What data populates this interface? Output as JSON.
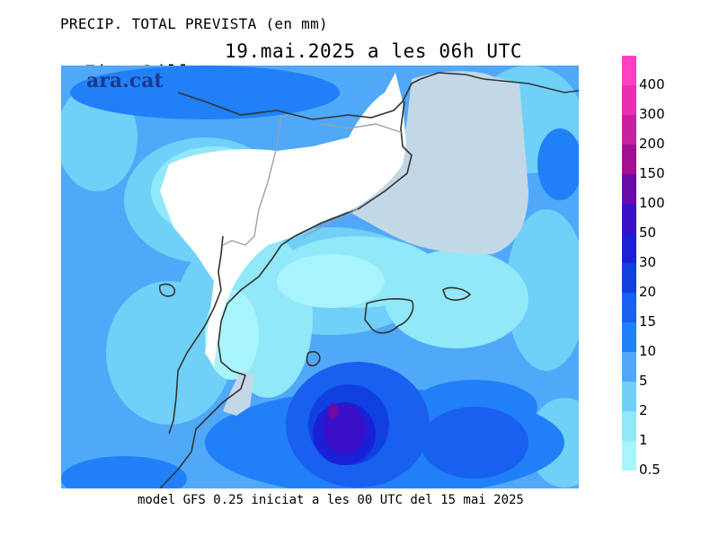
{
  "title_line1": "PRECIP. TOTAL PREVISTA (en mm)",
  "title_line2_left": "Fins Dilluns",
  "title_line2_date": "19.mai.2025 a les 06h UTC",
  "logo": "ara.cat",
  "footer": "model GFS 0.25 iniciat a les 00 UTC del 15 mai 2025",
  "legend": {
    "unit": "mm",
    "levels": [
      {
        "label": "400",
        "color": "#ff40c0"
      },
      {
        "label": "300",
        "color": "#e830b0"
      },
      {
        "label": "200",
        "color": "#c820a0"
      },
      {
        "label": "150",
        "color": "#a01090"
      },
      {
        "label": "100",
        "color": "#6a0aa8"
      },
      {
        "label": "50",
        "color": "#3a10c8"
      },
      {
        "label": "30",
        "color": "#1a20d8"
      },
      {
        "label": "20",
        "color": "#1040e0"
      },
      {
        "label": "15",
        "color": "#1860f0"
      },
      {
        "label": "10",
        "color": "#2080f8"
      },
      {
        "label": "5",
        "color": "#50a8f8"
      },
      {
        "label": "2",
        "color": "#70d0f8"
      },
      {
        "label": "1",
        "color": "#90e8f8"
      },
      {
        "label": "0.5",
        "color": "#a8f4fc"
      }
    ]
  },
  "map_colors": {
    "land_dry": "#ffffff",
    "sea_no_precip": "#c3d8e6",
    "border": "#333333",
    "region_border": "#9aa0a6"
  }
}
